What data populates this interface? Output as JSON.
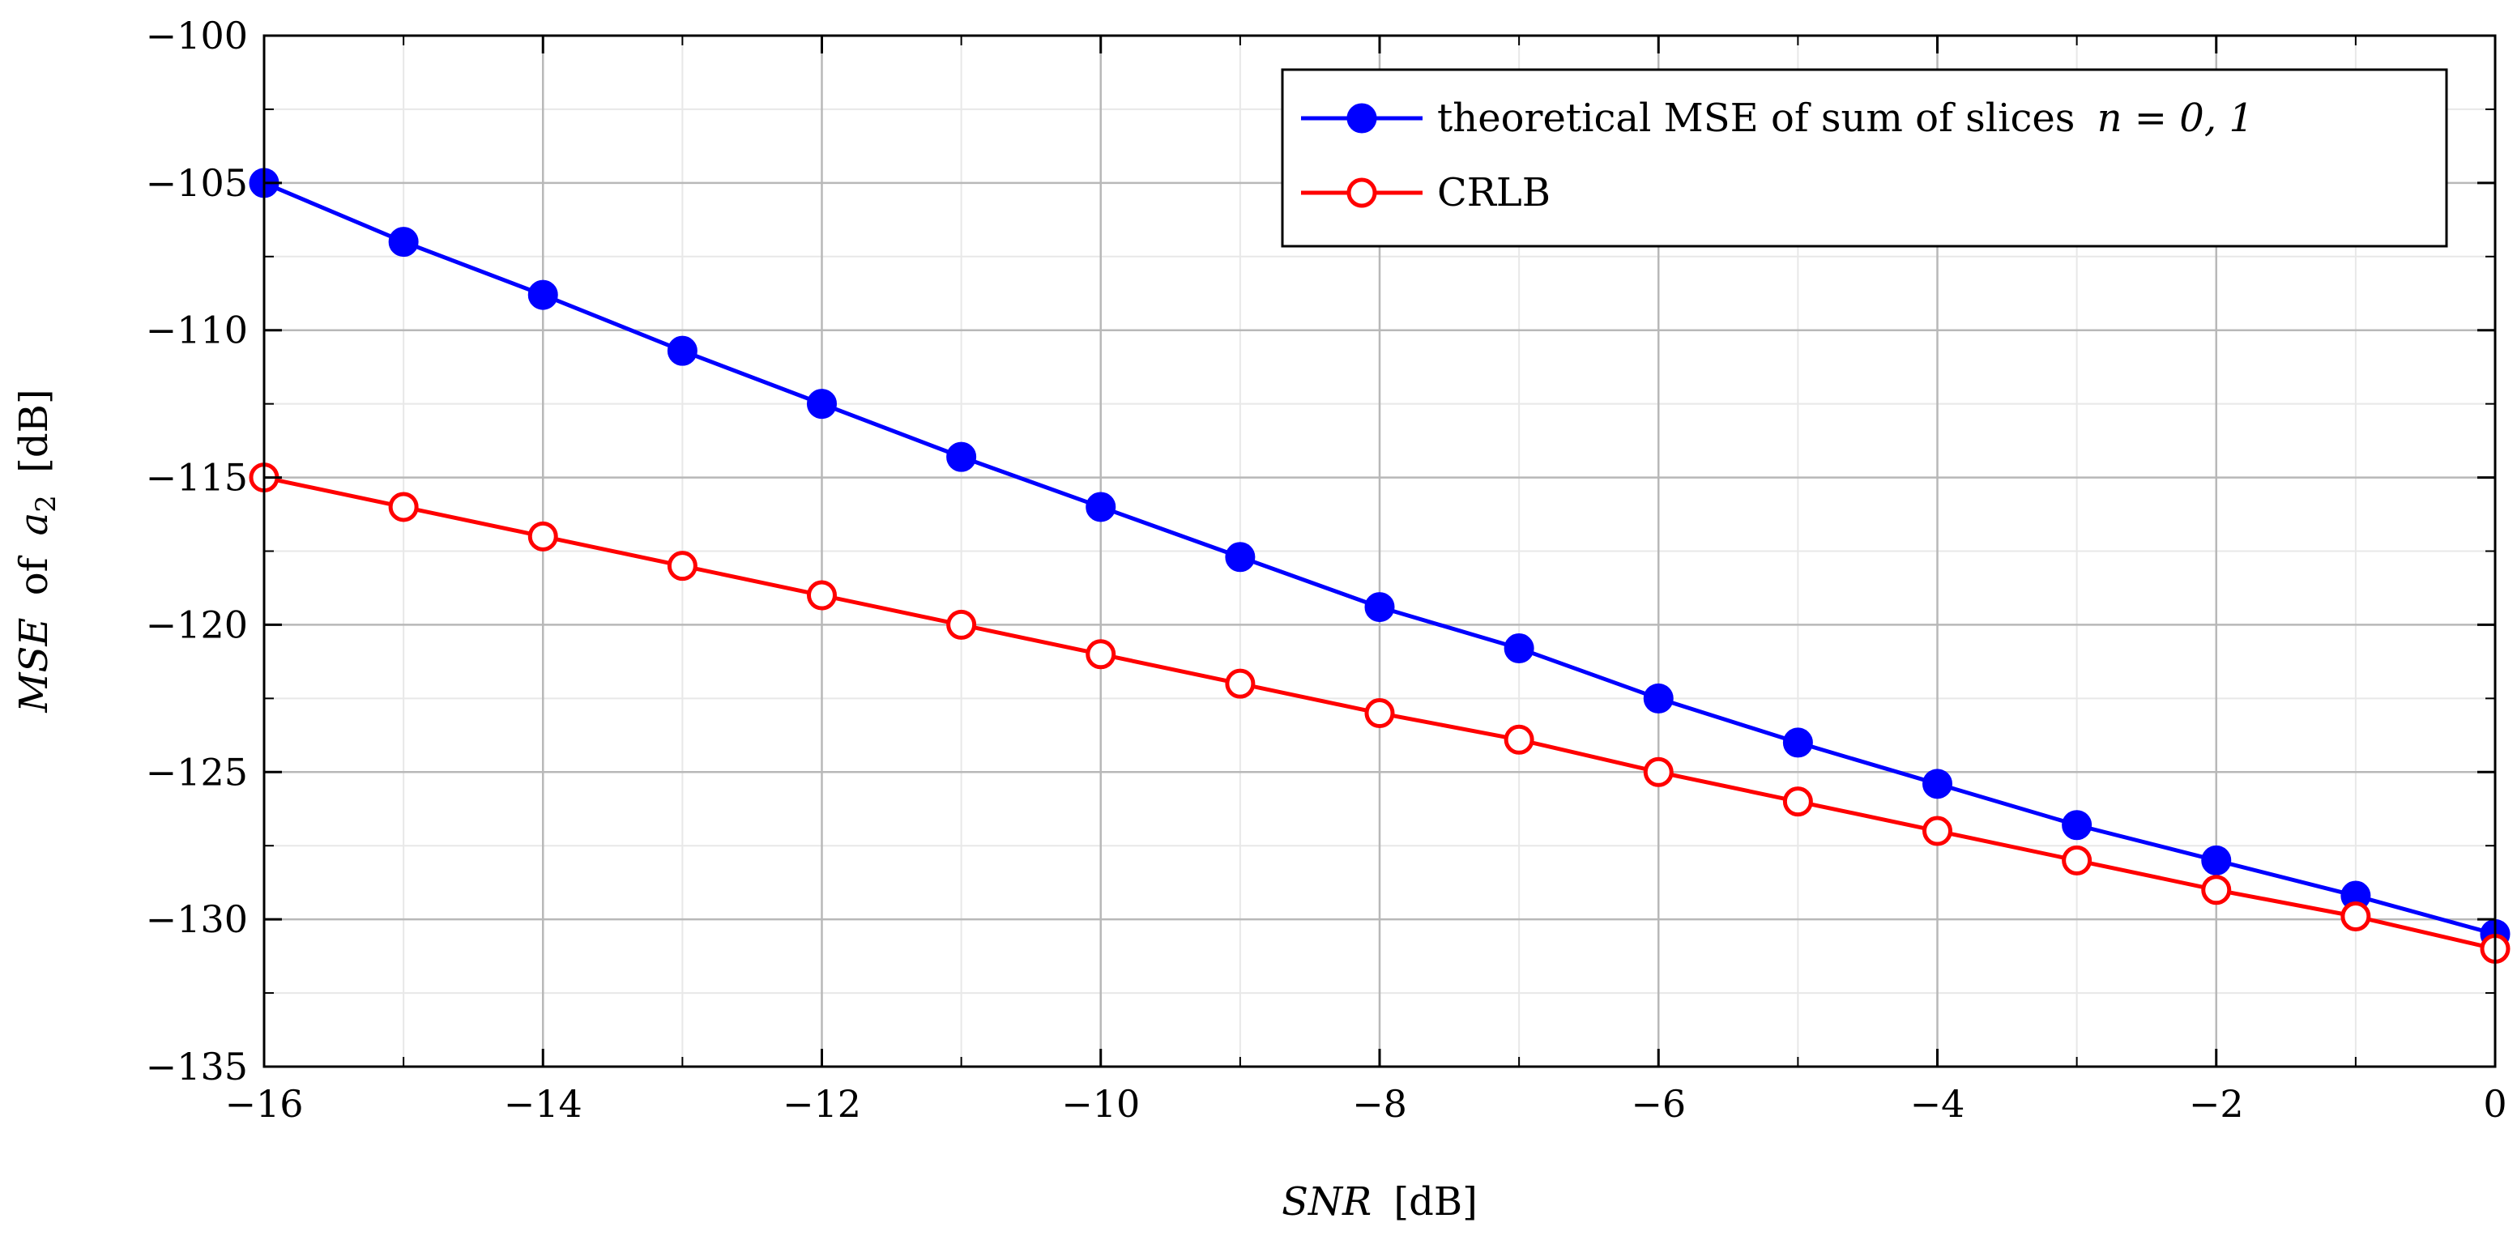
{
  "chart_data": {
    "type": "line",
    "title": "",
    "xlabel": {
      "var": "SNR",
      "unit": "[dB]"
    },
    "ylabel": {
      "var": "MSE",
      "mid": "of",
      "sym": "a",
      "sub": "2",
      "unit": "[dB]"
    },
    "xlim": [
      -16,
      0
    ],
    "ylim": [
      -135,
      -100
    ],
    "xticks": [
      -16,
      -14,
      -12,
      -10,
      -8,
      -6,
      -4,
      -2,
      0
    ],
    "xtick_labels": [
      "−16",
      "−14",
      "−12",
      "−10",
      "−8",
      "−6",
      "−4",
      "−2",
      "0"
    ],
    "yticks": [
      -100,
      -105,
      -110,
      -115,
      -120,
      -125,
      -130,
      -135
    ],
    "ytick_labels": [
      "−100",
      "−105",
      "−110",
      "−115",
      "−120",
      "−125",
      "−130",
      "−135"
    ],
    "grid": true,
    "legend_position": "top-right",
    "x": [
      -16,
      -15,
      -14,
      -13,
      -12,
      -11,
      -10,
      -9,
      -8,
      -7,
      -6,
      -5,
      -4,
      -3,
      -2,
      -1,
      0
    ],
    "series": [
      {
        "name": "theoretical MSE of sum of slices",
        "name_math": "n = 0, 1",
        "color": "#0000ff",
        "marker": "filled-circle",
        "values": [
          -105.0,
          -107.0,
          -108.8,
          -110.7,
          -112.5,
          -114.3,
          -116.0,
          -117.7,
          -119.4,
          -120.8,
          -122.5,
          -124.0,
          -125.4,
          -126.8,
          -128.0,
          -129.2,
          -130.5
        ]
      },
      {
        "name": "CRLB",
        "name_math": "",
        "color": "#ff0000",
        "marker": "open-circle",
        "values": [
          -115.0,
          -116.0,
          -117.0,
          -118.0,
          -119.0,
          -120.0,
          -121.0,
          -122.0,
          -123.0,
          -123.9,
          -125.0,
          -126.0,
          -127.0,
          -128.0,
          -129.0,
          -129.9,
          -131.0
        ]
      }
    ]
  }
}
